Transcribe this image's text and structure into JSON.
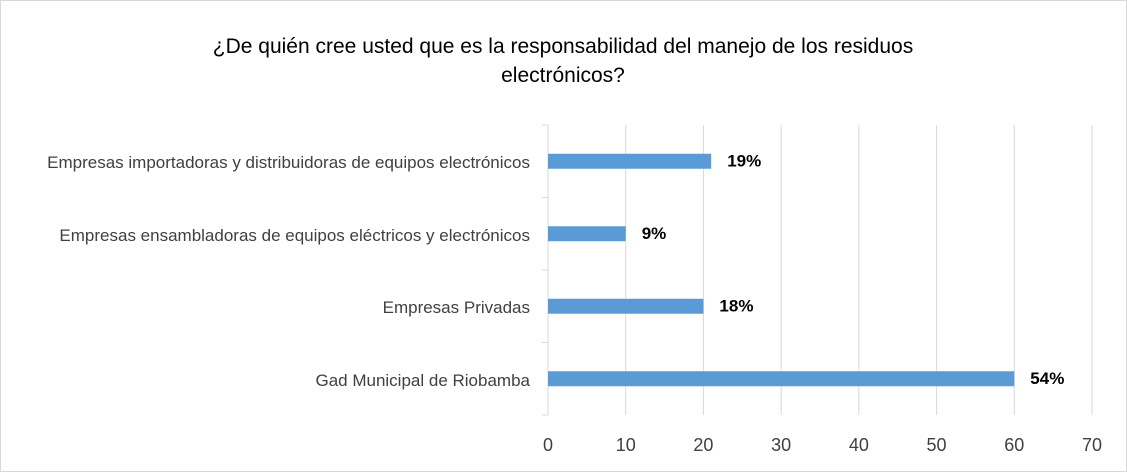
{
  "chart_data": {
    "type": "bar",
    "orientation": "horizontal",
    "title": "¿De quién cree usted que es la responsabilidad del manejo de los residuos electrónicos?",
    "categories": [
      "Empresas importadoras y distribuidoras de equipos electrónicos",
      "Empresas ensambladoras de equipos eléctricos y electrónicos",
      "Empresas Privadas",
      "Gad Municipal de Riobamba"
    ],
    "values": [
      21,
      10,
      20,
      60
    ],
    "value_labels": [
      "19%",
      "9%",
      "18%",
      "54%"
    ],
    "color": "#5b9bd5",
    "xlim": [
      0,
      70
    ],
    "xticks": [
      0,
      10,
      20,
      30,
      40,
      50,
      60,
      70
    ],
    "grid": true
  }
}
